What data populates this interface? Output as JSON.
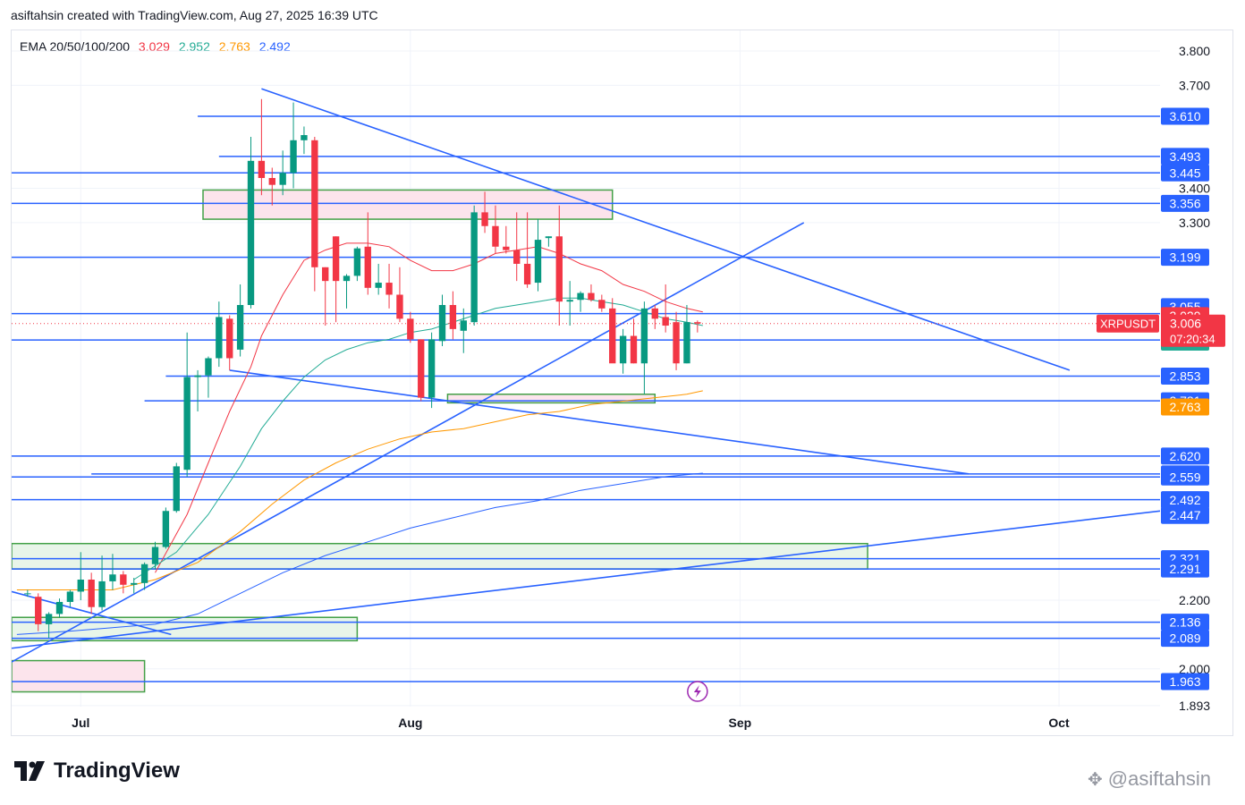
{
  "header": {
    "credit": "asiftahsin created with TradingView.com, Aug 27, 2025 16:39 UTC"
  },
  "legend": {
    "label": "EMA 20/50/100/200",
    "values": [
      {
        "text": "3.029",
        "color": "#f23645"
      },
      {
        "text": "2.952",
        "color": "#22ab94"
      },
      {
        "text": "2.763",
        "color": "#ff9800"
      },
      {
        "text": "2.492",
        "color": "#2962ff"
      }
    ]
  },
  "footer": {
    "brand": "TradingView",
    "watermark": "@asiftahsin"
  },
  "chart_data": {
    "type": "candlestick",
    "symbol": "XRPUSDT",
    "last_price": "3.006",
    "countdown": "07:20:34",
    "ylim": [
      1.89,
      3.86
    ],
    "y_ticks": [
      "3.800",
      "3.700",
      "3.400",
      "3.300",
      "2.200",
      "2.000",
      "1.893"
    ],
    "x_ticks": [
      {
        "label": "Jul",
        "day": 5
      },
      {
        "label": "Aug",
        "day": 36
      },
      {
        "label": "Sep",
        "day": 67
      },
      {
        "label": "Oct",
        "day": 97
      }
    ],
    "x_range": [
      -1.5,
      106.5
    ],
    "horizontal_levels": [
      {
        "value": 3.61,
        "label": "3.610",
        "from_day": 16
      },
      {
        "value": 3.493,
        "label": "3.493",
        "from_day": 18
      },
      {
        "value": 3.445,
        "label": "3.445",
        "from_day": -1.5
      },
      {
        "value": 3.356,
        "label": "3.356",
        "from_day": -1.5
      },
      {
        "value": 3.199,
        "label": "3.199",
        "from_day": -1.5
      },
      {
        "value": 3.055,
        "label": "3.055",
        "from_day": -1.5,
        "no_line": true
      },
      {
        "value": 3.035,
        "label": "",
        "from_day": -1.5
      },
      {
        "value": 2.958,
        "label": "2.958",
        "from_day": -1.5
      },
      {
        "value": 2.853,
        "label": "2.853",
        "from_day": 13
      },
      {
        "value": 2.781,
        "label": "2.781",
        "from_day": 11
      },
      {
        "value": 2.62,
        "label": "2.620",
        "from_day": -1.5
      },
      {
        "value": 2.568,
        "label": "2.568",
        "from_day": 6
      },
      {
        "value": 2.559,
        "label": "2.559",
        "from_day": -1.5
      },
      {
        "value": 2.493,
        "label": "2.493",
        "from_day": -1.5
      },
      {
        "value": 2.447,
        "label": "2.447",
        "from_day": -1.5,
        "no_line": true
      },
      {
        "value": 2.321,
        "label": "2.321",
        "from_day": -1.5
      },
      {
        "value": 2.291,
        "label": "2.291",
        "from_day": -1.5
      },
      {
        "value": 2.136,
        "label": "2.136",
        "from_day": -1.5
      },
      {
        "value": 2.089,
        "label": "2.089",
        "from_day": -1.5
      },
      {
        "value": 1.963,
        "label": "1.963",
        "from_day": -1.5
      }
    ],
    "ema_tags": [
      {
        "value": 3.029,
        "label": "3.029",
        "color": "#f23645"
      },
      {
        "value": 2.952,
        "label": "2.952",
        "color": "#22ab94"
      },
      {
        "value": 2.763,
        "label": "2.763",
        "color": "#ff9800"
      },
      {
        "value": 2.492,
        "label": "2.492",
        "color": "#2962ff"
      }
    ],
    "zones": [
      {
        "from_day": 16.5,
        "to_day": 55,
        "top": 3.395,
        "bottom": 3.31,
        "fill": "#fce4ec"
      },
      {
        "from_day": 39.5,
        "to_day": 59,
        "top": 2.8,
        "bottom": 2.775,
        "fill": "#fce4ec"
      },
      {
        "from_day": -1.5,
        "to_day": 79,
        "top": 2.365,
        "bottom": 2.291,
        "fill": "#e8f5e9"
      },
      {
        "from_day": -1.5,
        "to_day": 31,
        "top": 2.15,
        "bottom": 2.082,
        "fill": "#e8f5e9"
      },
      {
        "from_day": -1.5,
        "to_day": 11,
        "top": 2.024,
        "bottom": 1.933,
        "fill": "#fce4ec"
      }
    ],
    "trendlines": [
      {
        "x1": 22,
        "y1": 3.69,
        "x2": 98,
        "y2": 2.87
      },
      {
        "x1": -1.5,
        "y1": 2.02,
        "x2": 73,
        "y2": 3.3
      },
      {
        "x1": 19,
        "y1": 2.87,
        "x2": 88.5,
        "y2": 2.568
      },
      {
        "x1": -1.5,
        "y1": 2.06,
        "x2": 106.5,
        "y2": 2.46
      },
      {
        "x1": -1.5,
        "y1": 2.225,
        "x2": 13.5,
        "y2": 2.1
      }
    ],
    "candles": [
      {
        "d": 0,
        "o": 2.22,
        "h": 2.23,
        "l": 2.21,
        "c": 2.22
      },
      {
        "d": 1,
        "o": 2.21,
        "h": 2.22,
        "l": 2.11,
        "c": 2.13
      },
      {
        "d": 2,
        "o": 2.13,
        "h": 2.165,
        "l": 2.09,
        "c": 2.16
      },
      {
        "d": 3,
        "o": 2.16,
        "h": 2.205,
        "l": 2.15,
        "c": 2.195
      },
      {
        "d": 4,
        "o": 2.195,
        "h": 2.23,
        "l": 2.18,
        "c": 2.225
      },
      {
        "d": 5,
        "o": 2.225,
        "h": 2.34,
        "l": 2.2,
        "c": 2.26
      },
      {
        "d": 6,
        "o": 2.26,
        "h": 2.28,
        "l": 2.16,
        "c": 2.18
      },
      {
        "d": 7,
        "o": 2.18,
        "h": 2.33,
        "l": 2.17,
        "c": 2.255
      },
      {
        "d": 8,
        "o": 2.255,
        "h": 2.335,
        "l": 2.23,
        "c": 2.275
      },
      {
        "d": 9,
        "o": 2.275,
        "h": 2.285,
        "l": 2.22,
        "c": 2.245
      },
      {
        "d": 10,
        "o": 2.245,
        "h": 2.265,
        "l": 2.22,
        "c": 2.25
      },
      {
        "d": 11,
        "o": 2.25,
        "h": 2.31,
        "l": 2.23,
        "c": 2.305
      },
      {
        "d": 12,
        "o": 2.305,
        "h": 2.37,
        "l": 2.29,
        "c": 2.355
      },
      {
        "d": 13,
        "o": 2.355,
        "h": 2.47,
        "l": 2.35,
        "c": 2.46
      },
      {
        "d": 14,
        "o": 2.46,
        "h": 2.6,
        "l": 2.455,
        "c": 2.59
      },
      {
        "d": 15,
        "o": 2.58,
        "h": 2.98,
        "l": 2.56,
        "c": 2.85
      },
      {
        "d": 16,
        "o": 2.85,
        "h": 2.87,
        "l": 2.75,
        "c": 2.855
      },
      {
        "d": 17,
        "o": 2.855,
        "h": 2.91,
        "l": 2.79,
        "c": 2.905
      },
      {
        "d": 18,
        "o": 2.905,
        "h": 3.07,
        "l": 2.88,
        "c": 3.025
      },
      {
        "d": 19,
        "o": 3.02,
        "h": 3.03,
        "l": 2.87,
        "c": 2.905
      },
      {
        "d": 20,
        "o": 2.93,
        "h": 3.12,
        "l": 2.91,
        "c": 3.06
      },
      {
        "d": 21,
        "o": 3.06,
        "h": 3.55,
        "l": 3.05,
        "c": 3.48
      },
      {
        "d": 22,
        "o": 3.48,
        "h": 3.66,
        "l": 3.38,
        "c": 3.43
      },
      {
        "d": 23,
        "o": 3.43,
        "h": 3.46,
        "l": 3.35,
        "c": 3.41
      },
      {
        "d": 24,
        "o": 3.41,
        "h": 3.51,
        "l": 3.38,
        "c": 3.445
      },
      {
        "d": 25,
        "o": 3.445,
        "h": 3.65,
        "l": 3.4,
        "c": 3.54
      },
      {
        "d": 26,
        "o": 3.54,
        "h": 3.58,
        "l": 3.5,
        "c": 3.555
      },
      {
        "d": 27,
        "o": 3.54,
        "h": 3.55,
        "l": 3.1,
        "c": 3.17
      },
      {
        "d": 28,
        "o": 3.17,
        "h": 3.17,
        "l": 3.0,
        "c": 3.13
      },
      {
        "d": 29,
        "o": 3.26,
        "h": 3.26,
        "l": 3.01,
        "c": 3.13
      },
      {
        "d": 30,
        "o": 3.13,
        "h": 3.15,
        "l": 3.05,
        "c": 3.145
      },
      {
        "d": 31,
        "o": 3.145,
        "h": 3.23,
        "l": 3.13,
        "c": 3.225
      },
      {
        "d": 32,
        "o": 3.23,
        "h": 3.33,
        "l": 3.09,
        "c": 3.11
      },
      {
        "d": 33,
        "o": 3.11,
        "h": 3.18,
        "l": 3.09,
        "c": 3.125
      },
      {
        "d": 34,
        "o": 3.125,
        "h": 3.18,
        "l": 3.05,
        "c": 3.09
      },
      {
        "d": 35,
        "o": 3.09,
        "h": 3.17,
        "l": 3.01,
        "c": 3.02
      },
      {
        "d": 36,
        "o": 3.02,
        "h": 3.04,
        "l": 2.95,
        "c": 2.96
      },
      {
        "d": 37,
        "o": 2.96,
        "h": 2.96,
        "l": 2.78,
        "c": 2.79
      },
      {
        "d": 38,
        "o": 2.79,
        "h": 2.98,
        "l": 2.76,
        "c": 2.96
      },
      {
        "d": 39,
        "o": 2.955,
        "h": 3.09,
        "l": 2.94,
        "c": 3.06
      },
      {
        "d": 40,
        "o": 3.06,
        "h": 3.1,
        "l": 2.96,
        "c": 2.99
      },
      {
        "d": 41,
        "o": 2.985,
        "h": 3.05,
        "l": 2.92,
        "c": 3.015
      },
      {
        "d": 42,
        "o": 3.01,
        "h": 3.35,
        "l": 3.0,
        "c": 3.33
      },
      {
        "d": 43,
        "o": 3.33,
        "h": 3.39,
        "l": 3.27,
        "c": 3.29
      },
      {
        "d": 44,
        "o": 3.29,
        "h": 3.35,
        "l": 3.21,
        "c": 3.23
      },
      {
        "d": 45,
        "o": 3.23,
        "h": 3.29,
        "l": 3.21,
        "c": 3.22
      },
      {
        "d": 46,
        "o": 3.22,
        "h": 3.33,
        "l": 3.13,
        "c": 3.18
      },
      {
        "d": 47,
        "o": 3.18,
        "h": 3.33,
        "l": 3.11,
        "c": 3.12
      },
      {
        "d": 48,
        "o": 3.125,
        "h": 3.31,
        "l": 3.1,
        "c": 3.25
      },
      {
        "d": 49,
        "o": 3.255,
        "h": 3.26,
        "l": 3.23,
        "c": 3.26
      },
      {
        "d": 50,
        "o": 3.26,
        "h": 3.35,
        "l": 3.0,
        "c": 3.07
      },
      {
        "d": 51,
        "o": 3.07,
        "h": 3.13,
        "l": 3.0,
        "c": 3.075
      },
      {
        "d": 52,
        "o": 3.075,
        "h": 3.1,
        "l": 3.04,
        "c": 3.095
      },
      {
        "d": 53,
        "o": 3.095,
        "h": 3.12,
        "l": 3.07,
        "c": 3.075
      },
      {
        "d": 54,
        "o": 3.075,
        "h": 3.09,
        "l": 3.04,
        "c": 3.05
      },
      {
        "d": 55,
        "o": 3.05,
        "h": 3.08,
        "l": 2.9,
        "c": 2.89
      },
      {
        "d": 56,
        "o": 2.89,
        "h": 2.99,
        "l": 2.86,
        "c": 2.97
      },
      {
        "d": 57,
        "o": 2.97,
        "h": 3.02,
        "l": 2.89,
        "c": 2.89
      },
      {
        "d": 58,
        "o": 2.89,
        "h": 3.07,
        "l": 2.8,
        "c": 3.05
      },
      {
        "d": 59,
        "o": 3.05,
        "h": 3.06,
        "l": 2.99,
        "c": 3.02
      },
      {
        "d": 60,
        "o": 3.025,
        "h": 3.12,
        "l": 2.98,
        "c": 3.0
      },
      {
        "d": 61,
        "o": 3.01,
        "h": 3.04,
        "l": 2.87,
        "c": 2.89
      },
      {
        "d": 62,
        "o": 2.89,
        "h": 3.06,
        "l": 2.89,
        "c": 3.01
      },
      {
        "d": 63,
        "o": 3.01,
        "h": 3.015,
        "l": 2.98,
        "c": 3.006
      }
    ],
    "ema_lines": [
      {
        "name": "EMA 20",
        "color": "#f23645",
        "points": [
          [
            12,
            2.28
          ],
          [
            15,
            2.45
          ],
          [
            17,
            2.6
          ],
          [
            19,
            2.75
          ],
          [
            21,
            2.88
          ],
          [
            22,
            2.97
          ],
          [
            24,
            3.09
          ],
          [
            26,
            3.19
          ],
          [
            28,
            3.22
          ],
          [
            30,
            3.24
          ],
          [
            32,
            3.24
          ],
          [
            34,
            3.23
          ],
          [
            36,
            3.19
          ],
          [
            38,
            3.16
          ],
          [
            40,
            3.16
          ],
          [
            42,
            3.18
          ],
          [
            44,
            3.21
          ],
          [
            46,
            3.22
          ],
          [
            48,
            3.23
          ],
          [
            50,
            3.21
          ],
          [
            52,
            3.18
          ],
          [
            54,
            3.16
          ],
          [
            56,
            3.12
          ],
          [
            58,
            3.1
          ],
          [
            60,
            3.07
          ],
          [
            62,
            3.05
          ],
          [
            63.5,
            3.04
          ]
        ]
      },
      {
        "name": "EMA 50",
        "color": "#22ab94",
        "points": [
          [
            10,
            2.26
          ],
          [
            14,
            2.34
          ],
          [
            17,
            2.45
          ],
          [
            20,
            2.59
          ],
          [
            22,
            2.7
          ],
          [
            24,
            2.78
          ],
          [
            26,
            2.85
          ],
          [
            28,
            2.9
          ],
          [
            30,
            2.93
          ],
          [
            32,
            2.95
          ],
          [
            34,
            2.96
          ],
          [
            36,
            2.98
          ],
          [
            38,
            2.99
          ],
          [
            40,
            3.01
          ],
          [
            42,
            3.03
          ],
          [
            44,
            3.05
          ],
          [
            46,
            3.06
          ],
          [
            48,
            3.07
          ],
          [
            50,
            3.08
          ],
          [
            52,
            3.08
          ],
          [
            54,
            3.07
          ],
          [
            56,
            3.06
          ],
          [
            58,
            3.04
          ],
          [
            60,
            3.02
          ],
          [
            62,
            3.01
          ],
          [
            63.5,
            3.0
          ]
        ]
      },
      {
        "name": "EMA 100",
        "color": "#ff9800",
        "points": [
          [
            -1,
            2.23
          ],
          [
            4,
            2.23
          ],
          [
            8,
            2.23
          ],
          [
            12,
            2.26
          ],
          [
            16,
            2.31
          ],
          [
            20,
            2.4
          ],
          [
            23,
            2.48
          ],
          [
            26,
            2.55
          ],
          [
            29,
            2.6
          ],
          [
            32,
            2.64
          ],
          [
            35,
            2.67
          ],
          [
            38,
            2.69
          ],
          [
            41,
            2.7
          ],
          [
            44,
            2.72
          ],
          [
            47,
            2.74
          ],
          [
            50,
            2.75
          ],
          [
            53,
            2.77
          ],
          [
            56,
            2.78
          ],
          [
            59,
            2.79
          ],
          [
            62,
            2.8
          ],
          [
            63.5,
            2.81
          ]
        ]
      },
      {
        "name": "EMA 200",
        "color": "#2962ff",
        "points": [
          [
            -1,
            2.1
          ],
          [
            4,
            2.11
          ],
          [
            8,
            2.12
          ],
          [
            12,
            2.13
          ],
          [
            16,
            2.16
          ],
          [
            20,
            2.22
          ],
          [
            24,
            2.28
          ],
          [
            28,
            2.33
          ],
          [
            32,
            2.37
          ],
          [
            36,
            2.41
          ],
          [
            40,
            2.44
          ],
          [
            44,
            2.47
          ],
          [
            48,
            2.49
          ],
          [
            52,
            2.52
          ],
          [
            56,
            2.54
          ],
          [
            60,
            2.56
          ],
          [
            63.5,
            2.57
          ]
        ]
      }
    ],
    "current_price_value": 3.006,
    "lightning_day": 63
  }
}
